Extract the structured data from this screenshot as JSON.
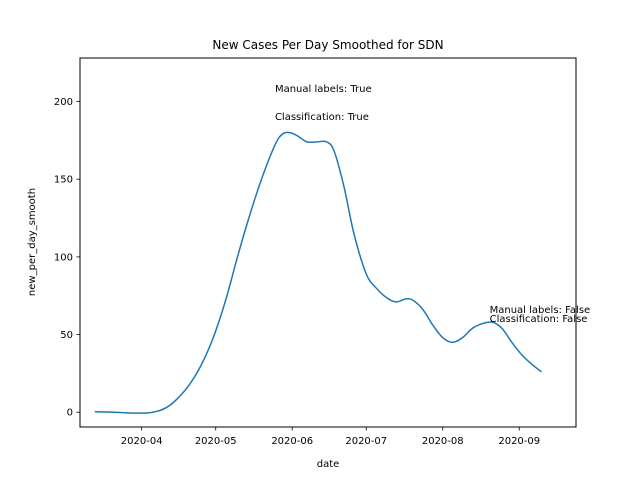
{
  "chart_data": {
    "type": "line",
    "title": "New Cases Per Day Smoothed for SDN",
    "xlabel": "date",
    "ylabel": "new_per_day_smooth",
    "x_ticks": [
      "2020-04",
      "2020-05",
      "2020-06",
      "2020-07",
      "2020-08",
      "2020-09"
    ],
    "y_ticks": [
      0,
      50,
      100,
      150,
      200
    ],
    "xlim": [
      "2020-03-07",
      "2020-09-24"
    ],
    "ylim": [
      -9.5,
      228
    ],
    "grid": false,
    "line_color": "#1f77b4",
    "series": [
      {
        "x": [
          "2020-03-13",
          "2020-03-20",
          "2020-03-27",
          "2020-04-03",
          "2020-04-07",
          "2020-04-11",
          "2020-04-15",
          "2020-04-20",
          "2020-04-25",
          "2020-04-30",
          "2020-05-05",
          "2020-05-10",
          "2020-05-15",
          "2020-05-20",
          "2020-05-25",
          "2020-05-28",
          "2020-05-31",
          "2020-06-03",
          "2020-06-07",
          "2020-06-11",
          "2020-06-15",
          "2020-06-18",
          "2020-06-22",
          "2020-06-26",
          "2020-07-01",
          "2020-07-05",
          "2020-07-09",
          "2020-07-13",
          "2020-07-17",
          "2020-07-20",
          "2020-07-24",
          "2020-07-28",
          "2020-08-01",
          "2020-08-05",
          "2020-08-09",
          "2020-08-13",
          "2020-08-17",
          "2020-08-21",
          "2020-08-25",
          "2020-08-29",
          "2020-09-02",
          "2020-09-06",
          "2020-09-10"
        ],
        "values": [
          0.3,
          0.1,
          -0.5,
          -0.5,
          0.5,
          3,
          8,
          17,
          30,
          48,
          72,
          101,
          128,
          152,
          172,
          179,
          180,
          178,
          174,
          174,
          174,
          168,
          145,
          115,
          89,
          80,
          74,
          71,
          73,
          72,
          66,
          56,
          48,
          45,
          48,
          54,
          57,
          58,
          54,
          45,
          37,
          31,
          26
        ]
      }
    ],
    "annotations": [
      {
        "text": "Manual labels: True",
        "x": "2020-05-25",
        "y": 206
      },
      {
        "text": "Classification: True",
        "x": "2020-05-25",
        "y": 188
      },
      {
        "text": "Manual labels: False",
        "x": "2020-08-20",
        "y": 64
      },
      {
        "text": "Classification: False",
        "x": "2020-08-20",
        "y": 58
      }
    ]
  }
}
